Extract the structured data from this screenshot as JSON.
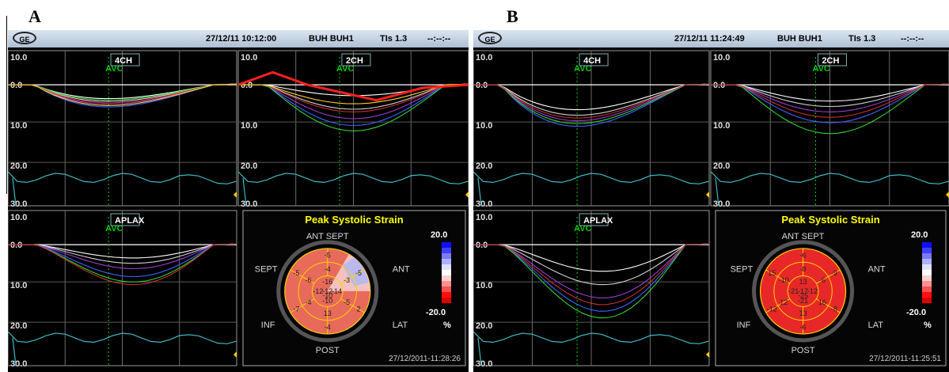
{
  "panels": [
    {
      "letter": "A",
      "header": {
        "datetime": "27/12/11 10:12:00",
        "site": "BUH BUH1",
        "tis": "TIs 1.3",
        "extra": "--:--:--"
      },
      "views": [
        {
          "name": "4CH",
          "marker": "AVC"
        },
        {
          "name": "2CH",
          "marker": "AVC"
        },
        {
          "name": "APLAX",
          "marker": "AVC"
        }
      ],
      "y_labels": [
        "10.0",
        "0.0",
        "10.0",
        "20.0",
        "30.0"
      ],
      "bullseye": {
        "title": "Peak Systolic Strain",
        "walls": {
          "ant_sept": "ANT  SEPT",
          "ant": "ANT",
          "sept": "SEPT",
          "inf": "INF",
          "lat": "LAT",
          "post": "POST"
        },
        "segments": [
          "-5",
          "-5",
          "2",
          "-4",
          "-7",
          "-5",
          "-4",
          "-3",
          "-5",
          "13",
          "-4",
          "-6",
          "-16",
          "-14",
          "-10",
          "-12",
          "-12",
          "-10"
        ],
        "scale_max": "20.0",
        "scale_min": "-20.0",
        "unit": "%",
        "timestamp": "27/12/2011-11:28:26"
      }
    },
    {
      "letter": "B",
      "header": {
        "datetime": "27/12/11 11:24:49",
        "site": "BUH BUH1",
        "tis": "TIs 1.3",
        "extra": "--:--:--"
      },
      "views": [
        {
          "name": "4CH",
          "marker": "AVC"
        },
        {
          "name": "2CH",
          "marker": "AVC"
        },
        {
          "name": "APLAX",
          "marker": "AVC"
        }
      ],
      "y_labels": [
        "10.0",
        "0.0",
        "10.0",
        "20.0",
        "30.0"
      ],
      "bullseye": {
        "title": "Peak Systolic Strain",
        "walls": {
          "ant_sept": "ANT  SEPT",
          "ant": "ANT",
          "sept": "SEPT",
          "inf": "INF",
          "lat": "LAT",
          "post": "POST"
        },
        "segments": [
          "-6",
          "-9",
          "-8",
          "-6",
          "-12",
          "15",
          "-8",
          "-6",
          "16",
          "13",
          "12",
          "-10",
          "13",
          "-12",
          "-21",
          "-21",
          "-17",
          "-25"
        ],
        "scale_max": "20.0",
        "scale_min": "-20.0",
        "unit": "%",
        "timestamp": "27/12/2011-11:25:51"
      }
    }
  ],
  "colors": {
    "background": "#000000",
    "grid": "#808080",
    "avc_line": "#00cc00",
    "baseline": "#ffffff",
    "ecg": "#3fb8c0",
    "title": "#ffff00",
    "bullseye_fill": "#e53030"
  }
}
